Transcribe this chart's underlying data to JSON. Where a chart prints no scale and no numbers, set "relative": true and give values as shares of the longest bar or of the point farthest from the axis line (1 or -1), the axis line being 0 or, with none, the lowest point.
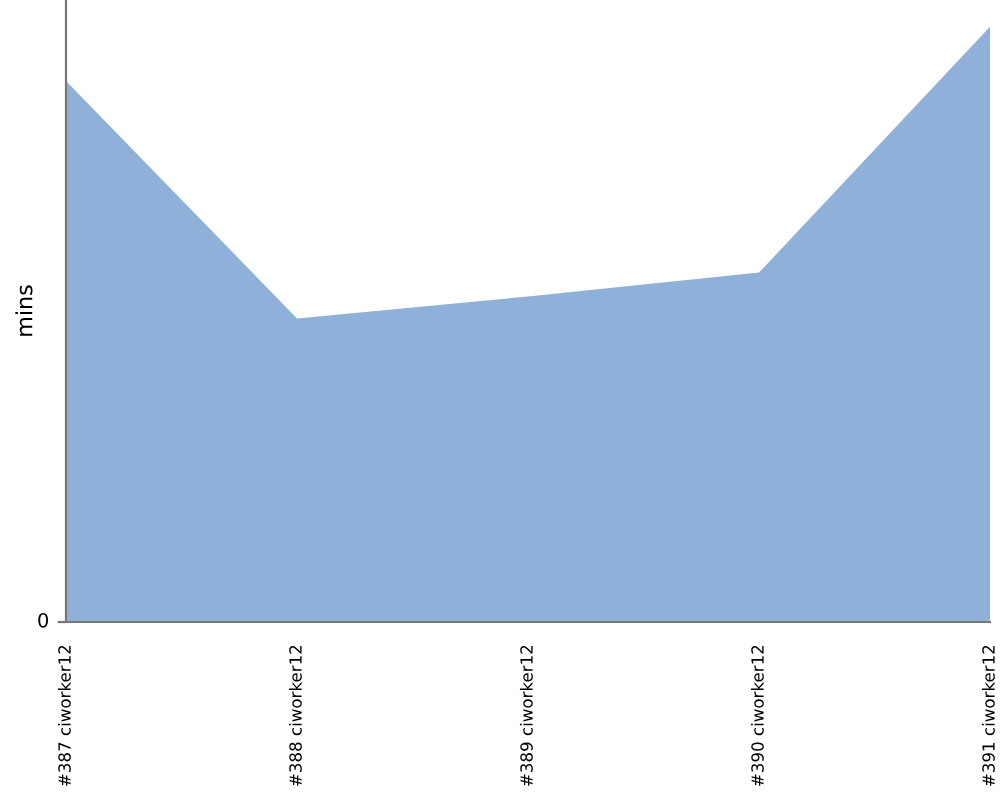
{
  "chart_data": {
    "type": "area",
    "ylabel": "mins",
    "relative": true,
    "annotations": [
      "0"
    ],
    "categories": [
      "#387 ciworker12",
      "#388 ciworker12",
      "#389 ciworker12",
      "#390 ciworker12",
      "#391 ciworker12"
    ],
    "series": [
      {
        "color": "#8fb1d9",
        "values": [
          0.909,
          0.51,
          0.547,
          0.587,
          1.0
        ]
      }
    ],
    "grid": false
  }
}
